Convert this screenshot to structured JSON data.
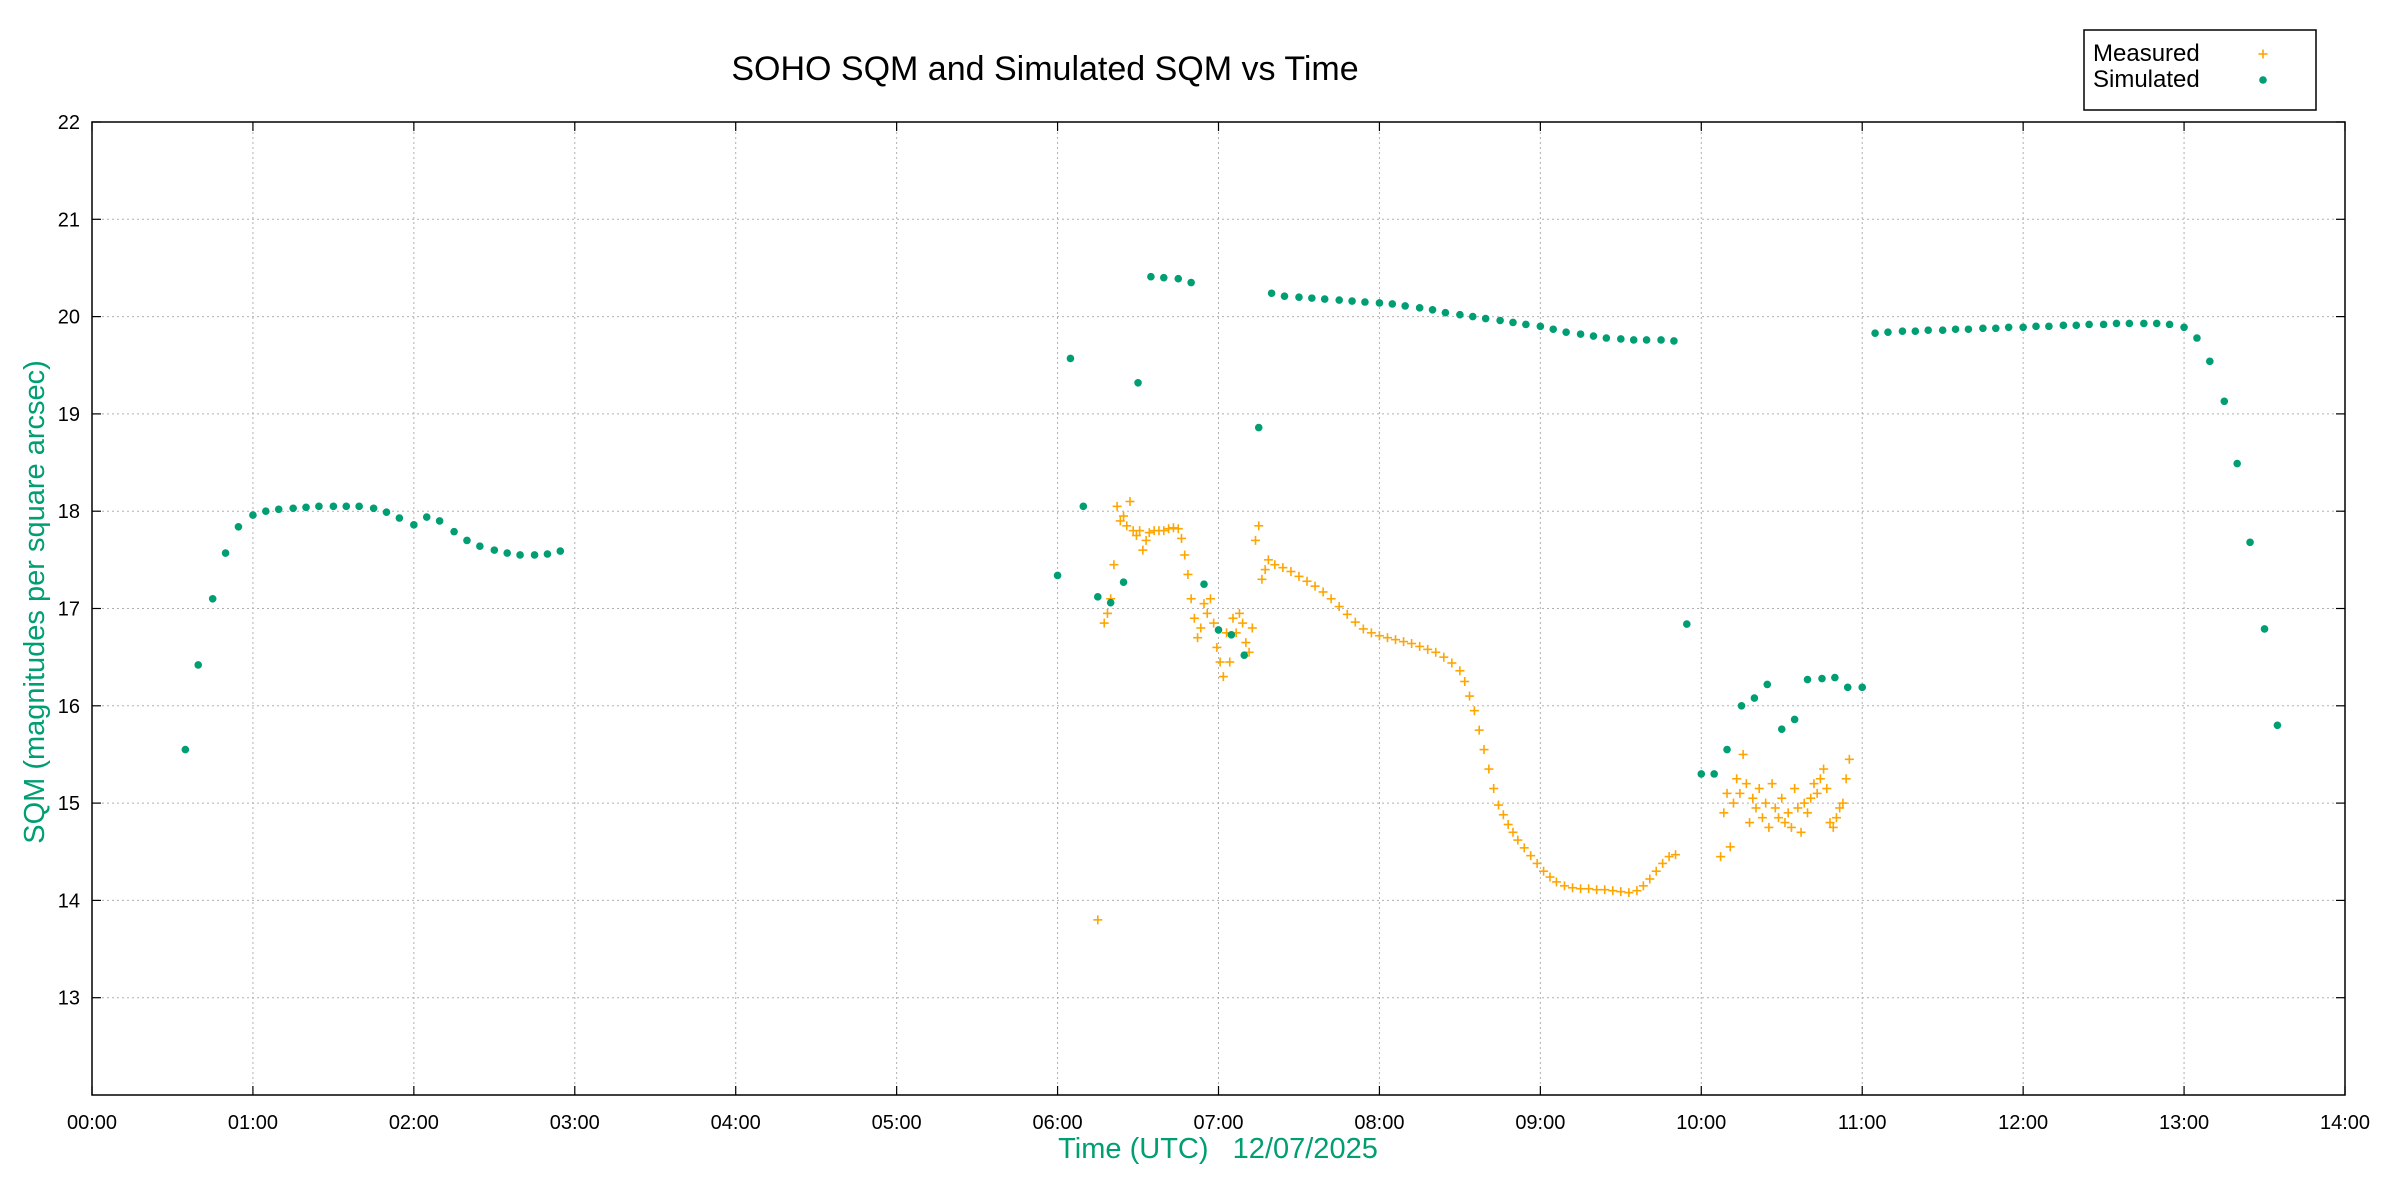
{
  "chart_data": {
    "type": "scatter",
    "title": "SOHO SQM and Simulated SQM vs Time",
    "xlabel": "Time (UTC)   12/07/2025",
    "ylabel": "SQM (magnitudes per square arcsec)",
    "xlim": [
      0,
      14
    ],
    "ylim": [
      12,
      22
    ],
    "xticks": [
      "00:00",
      "01:00",
      "02:00",
      "03:00",
      "04:00",
      "05:00",
      "06:00",
      "07:00",
      "08:00",
      "09:00",
      "10:00",
      "11:00",
      "12:00",
      "13:00",
      "14:00"
    ],
    "yticks": [
      13,
      14,
      15,
      16,
      17,
      18,
      19,
      20,
      21,
      22
    ],
    "grid": true,
    "legend_position": "top-right",
    "label_color": "#009e73",
    "series": [
      {
        "name": "Measured",
        "color": "#ffa500",
        "marker": "plus",
        "points": [
          [
            6.25,
            13.8
          ],
          [
            6.29,
            16.85
          ],
          [
            6.31,
            16.95
          ],
          [
            6.33,
            17.1
          ],
          [
            6.35,
            17.45
          ],
          [
            6.37,
            18.05
          ],
          [
            6.39,
            17.9
          ],
          [
            6.41,
            17.95
          ],
          [
            6.43,
            17.85
          ],
          [
            6.45,
            18.1
          ],
          [
            6.47,
            17.8
          ],
          [
            6.49,
            17.75
          ],
          [
            6.51,
            17.8
          ],
          [
            6.53,
            17.6
          ],
          [
            6.55,
            17.7
          ],
          [
            6.57,
            17.78
          ],
          [
            6.6,
            17.8
          ],
          [
            6.63,
            17.8
          ],
          [
            6.66,
            17.8
          ],
          [
            6.69,
            17.82
          ],
          [
            6.72,
            17.83
          ],
          [
            6.75,
            17.82
          ],
          [
            6.77,
            17.72
          ],
          [
            6.79,
            17.55
          ],
          [
            6.81,
            17.35
          ],
          [
            6.83,
            17.1
          ],
          [
            6.85,
            16.9
          ],
          [
            6.87,
            16.7
          ],
          [
            6.89,
            16.8
          ],
          [
            6.91,
            17.05
          ],
          [
            6.93,
            16.95
          ],
          [
            6.95,
            17.1
          ],
          [
            6.97,
            16.85
          ],
          [
            6.99,
            16.6
          ],
          [
            7.01,
            16.45
          ],
          [
            7.03,
            16.3
          ],
          [
            7.05,
            16.75
          ],
          [
            7.07,
            16.45
          ],
          [
            7.09,
            16.9
          ],
          [
            7.11,
            16.75
          ],
          [
            7.13,
            16.95
          ],
          [
            7.15,
            16.85
          ],
          [
            7.17,
            16.65
          ],
          [
            7.19,
            16.55
          ],
          [
            7.21,
            16.8
          ],
          [
            7.23,
            17.7
          ],
          [
            7.25,
            17.85
          ],
          [
            7.27,
            17.3
          ],
          [
            7.29,
            17.4
          ],
          [
            7.31,
            17.5
          ],
          [
            7.35,
            17.45
          ],
          [
            7.4,
            17.42
          ],
          [
            7.45,
            17.38
          ],
          [
            7.5,
            17.33
          ],
          [
            7.55,
            17.28
          ],
          [
            7.6,
            17.23
          ],
          [
            7.65,
            17.17
          ],
          [
            7.7,
            17.1
          ],
          [
            7.75,
            17.02
          ],
          [
            7.8,
            16.94
          ],
          [
            7.85,
            16.86
          ],
          [
            7.9,
            16.79
          ],
          [
            7.95,
            16.75
          ],
          [
            8.0,
            16.72
          ],
          [
            8.05,
            16.7
          ],
          [
            8.1,
            16.68
          ],
          [
            8.15,
            16.66
          ],
          [
            8.2,
            16.64
          ],
          [
            8.25,
            16.61
          ],
          [
            8.3,
            16.58
          ],
          [
            8.35,
            16.55
          ],
          [
            8.4,
            16.5
          ],
          [
            8.45,
            16.44
          ],
          [
            8.5,
            16.36
          ],
          [
            8.53,
            16.25
          ],
          [
            8.56,
            16.1
          ],
          [
            8.59,
            15.95
          ],
          [
            8.62,
            15.75
          ],
          [
            8.65,
            15.55
          ],
          [
            8.68,
            15.35
          ],
          [
            8.71,
            15.15
          ],
          [
            8.74,
            14.98
          ],
          [
            8.77,
            14.88
          ],
          [
            8.8,
            14.78
          ],
          [
            8.83,
            14.7
          ],
          [
            8.86,
            14.62
          ],
          [
            8.9,
            14.54
          ],
          [
            8.94,
            14.46
          ],
          [
            8.98,
            14.38
          ],
          [
            9.02,
            14.3
          ],
          [
            9.06,
            14.24
          ],
          [
            9.1,
            14.19
          ],
          [
            9.15,
            14.15
          ],
          [
            9.2,
            14.13
          ],
          [
            9.25,
            14.12
          ],
          [
            9.3,
            14.12
          ],
          [
            9.35,
            14.11
          ],
          [
            9.4,
            14.11
          ],
          [
            9.45,
            14.1
          ],
          [
            9.5,
            14.09
          ],
          [
            9.55,
            14.08
          ],
          [
            9.6,
            14.1
          ],
          [
            9.64,
            14.15
          ],
          [
            9.68,
            14.22
          ],
          [
            9.72,
            14.3
          ],
          [
            9.76,
            14.38
          ],
          [
            9.8,
            14.45
          ],
          [
            9.84,
            14.47
          ],
          [
            10.12,
            14.45
          ],
          [
            10.14,
            14.9
          ],
          [
            10.16,
            15.1
          ],
          [
            10.18,
            14.55
          ],
          [
            10.2,
            15.0
          ],
          [
            10.22,
            15.25
          ],
          [
            10.24,
            15.1
          ],
          [
            10.26,
            15.5
          ],
          [
            10.28,
            15.2
          ],
          [
            10.3,
            14.8
          ],
          [
            10.32,
            15.05
          ],
          [
            10.34,
            14.95
          ],
          [
            10.36,
            15.15
          ],
          [
            10.38,
            14.85
          ],
          [
            10.4,
            15.0
          ],
          [
            10.42,
            14.75
          ],
          [
            10.44,
            15.2
          ],
          [
            10.46,
            14.95
          ],
          [
            10.48,
            14.85
          ],
          [
            10.5,
            15.05
          ],
          [
            10.52,
            14.8
          ],
          [
            10.54,
            14.9
          ],
          [
            10.56,
            14.75
          ],
          [
            10.58,
            15.15
          ],
          [
            10.6,
            14.95
          ],
          [
            10.62,
            14.7
          ],
          [
            10.64,
            15.0
          ],
          [
            10.66,
            14.9
          ],
          [
            10.68,
            15.05
          ],
          [
            10.7,
            15.2
          ],
          [
            10.72,
            15.1
          ],
          [
            10.74,
            15.25
          ],
          [
            10.76,
            15.35
          ],
          [
            10.78,
            15.15
          ],
          [
            10.8,
            14.8
          ],
          [
            10.82,
            14.75
          ],
          [
            10.84,
            14.85
          ],
          [
            10.86,
            14.95
          ],
          [
            10.88,
            15.0
          ],
          [
            10.9,
            15.25
          ],
          [
            10.92,
            15.45
          ]
        ]
      },
      {
        "name": "Simulated",
        "color": "#009e73",
        "marker": "dot",
        "points": [
          [
            0.58,
            15.55
          ],
          [
            0.66,
            16.42
          ],
          [
            0.75,
            17.1
          ],
          [
            0.83,
            17.57
          ],
          [
            0.91,
            17.84
          ],
          [
            1.0,
            17.96
          ],
          [
            1.08,
            18.0
          ],
          [
            1.16,
            18.02
          ],
          [
            1.25,
            18.03
          ],
          [
            1.33,
            18.04
          ],
          [
            1.41,
            18.05
          ],
          [
            1.5,
            18.05
          ],
          [
            1.58,
            18.05
          ],
          [
            1.66,
            18.05
          ],
          [
            1.75,
            18.03
          ],
          [
            1.83,
            17.99
          ],
          [
            1.91,
            17.93
          ],
          [
            2.0,
            17.86
          ],
          [
            2.08,
            17.94
          ],
          [
            2.16,
            17.9
          ],
          [
            2.25,
            17.79
          ],
          [
            2.33,
            17.7
          ],
          [
            2.41,
            17.64
          ],
          [
            2.5,
            17.6
          ],
          [
            2.58,
            17.57
          ],
          [
            2.66,
            17.55
          ],
          [
            2.75,
            17.55
          ],
          [
            2.83,
            17.56
          ],
          [
            2.91,
            17.59
          ],
          [
            6.0,
            17.34
          ],
          [
            6.08,
            19.57
          ],
          [
            6.16,
            18.05
          ],
          [
            6.25,
            17.12
          ],
          [
            6.33,
            17.06
          ],
          [
            6.41,
            17.27
          ],
          [
            6.5,
            19.32
          ],
          [
            6.58,
            20.41
          ],
          [
            6.66,
            20.4
          ],
          [
            6.75,
            20.39
          ],
          [
            6.83,
            20.35
          ],
          [
            6.91,
            17.25
          ],
          [
            7.0,
            16.78
          ],
          [
            7.08,
            16.73
          ],
          [
            7.16,
            16.52
          ],
          [
            7.25,
            18.86
          ],
          [
            7.33,
            20.24
          ],
          [
            7.41,
            20.21
          ],
          [
            7.5,
            20.2
          ],
          [
            7.58,
            20.19
          ],
          [
            7.66,
            20.18
          ],
          [
            7.75,
            20.17
          ],
          [
            7.83,
            20.16
          ],
          [
            7.91,
            20.15
          ],
          [
            8.0,
            20.14
          ],
          [
            8.08,
            20.13
          ],
          [
            8.16,
            20.11
          ],
          [
            8.25,
            20.09
          ],
          [
            8.33,
            20.07
          ],
          [
            8.41,
            20.04
          ],
          [
            8.5,
            20.02
          ],
          [
            8.58,
            20.0
          ],
          [
            8.66,
            19.98
          ],
          [
            8.75,
            19.96
          ],
          [
            8.83,
            19.94
          ],
          [
            8.91,
            19.92
          ],
          [
            9.0,
            19.9
          ],
          [
            9.08,
            19.87
          ],
          [
            9.16,
            19.84
          ],
          [
            9.25,
            19.82
          ],
          [
            9.33,
            19.8
          ],
          [
            9.41,
            19.78
          ],
          [
            9.5,
            19.77
          ],
          [
            9.58,
            19.76
          ],
          [
            9.66,
            19.76
          ],
          [
            9.75,
            19.76
          ],
          [
            9.83,
            19.75
          ],
          [
            9.91,
            16.84
          ],
          [
            10.0,
            15.3
          ],
          [
            10.08,
            15.3
          ],
          [
            10.16,
            15.55
          ],
          [
            10.25,
            16.0
          ],
          [
            10.33,
            16.08
          ],
          [
            10.41,
            16.22
          ],
          [
            10.5,
            15.76
          ],
          [
            10.58,
            15.86
          ],
          [
            10.66,
            16.27
          ],
          [
            10.75,
            16.28
          ],
          [
            10.83,
            16.29
          ],
          [
            10.91,
            16.19
          ],
          [
            11.0,
            16.19
          ],
          [
            11.08,
            19.83
          ],
          [
            11.16,
            19.84
          ],
          [
            11.25,
            19.85
          ],
          [
            11.33,
            19.85
          ],
          [
            11.41,
            19.86
          ],
          [
            11.5,
            19.86
          ],
          [
            11.58,
            19.87
          ],
          [
            11.66,
            19.87
          ],
          [
            11.75,
            19.88
          ],
          [
            11.83,
            19.88
          ],
          [
            11.91,
            19.89
          ],
          [
            12.0,
            19.89
          ],
          [
            12.08,
            19.9
          ],
          [
            12.16,
            19.9
          ],
          [
            12.25,
            19.91
          ],
          [
            12.33,
            19.91
          ],
          [
            12.41,
            19.92
          ],
          [
            12.5,
            19.92
          ],
          [
            12.58,
            19.93
          ],
          [
            12.66,
            19.93
          ],
          [
            12.75,
            19.93
          ],
          [
            12.83,
            19.93
          ],
          [
            12.91,
            19.92
          ],
          [
            13.0,
            19.89
          ],
          [
            13.08,
            19.78
          ],
          [
            13.16,
            19.54
          ],
          [
            13.25,
            19.13
          ],
          [
            13.33,
            18.49
          ],
          [
            13.41,
            17.68
          ],
          [
            13.5,
            16.79
          ],
          [
            13.58,
            15.8
          ]
        ]
      }
    ]
  }
}
